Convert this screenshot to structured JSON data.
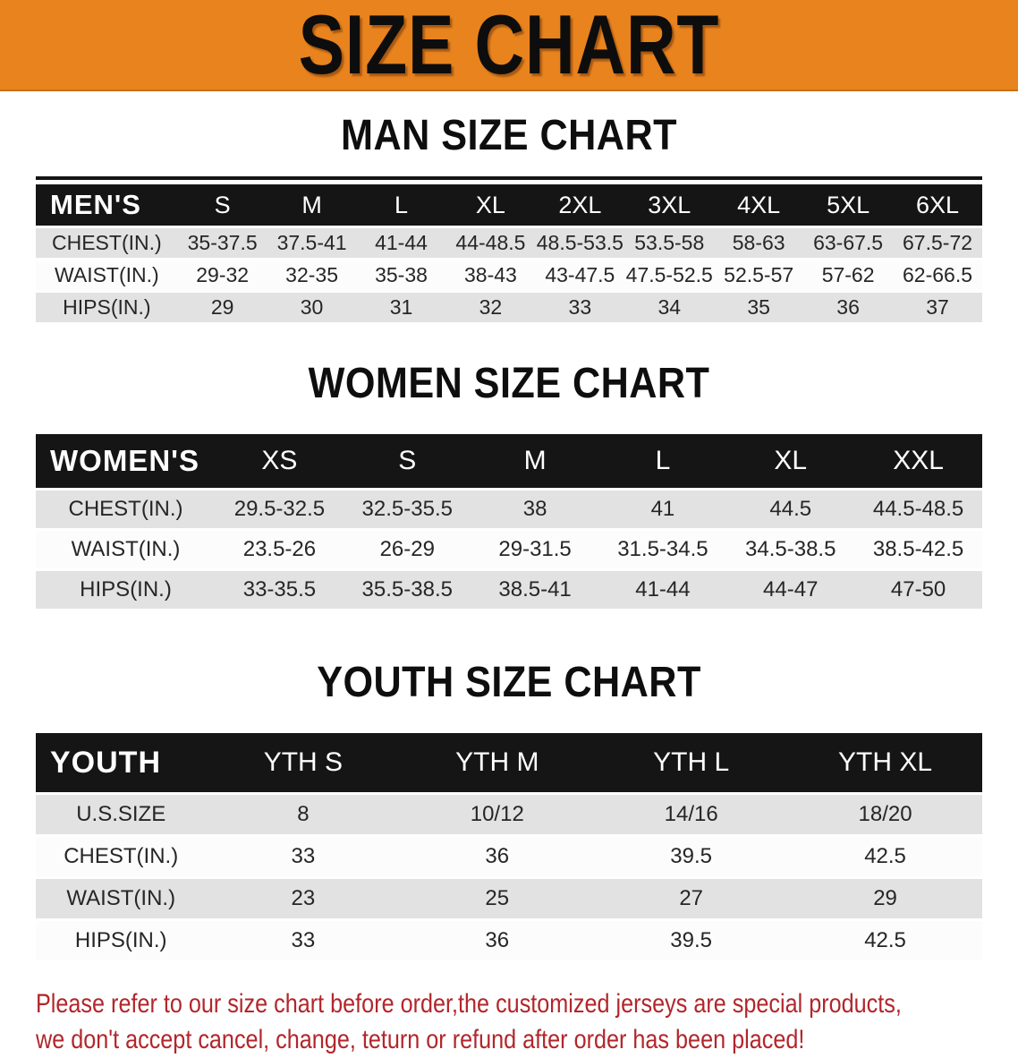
{
  "banner": {
    "title": "SIZE CHART",
    "bg_color": "#E8831E",
    "text_color": "#0d0d0d"
  },
  "sections": [
    {
      "heading": "MAN SIZE CHART",
      "table": {
        "header_label": "MEN'S",
        "columns": [
          "S",
          "M",
          "L",
          "XL",
          "2XL",
          "3XL",
          "4XL",
          "5XL",
          "6XL"
        ],
        "rows": [
          {
            "label": "CHEST(IN.)",
            "values": [
              "35-37.5",
              "37.5-41",
              "41-44",
              "44-48.5",
              "48.5-53.5",
              "53.5-58",
              "58-63",
              "63-67.5",
              "67.5-72"
            ]
          },
          {
            "label": "WAIST(IN.)",
            "values": [
              "29-32",
              "32-35",
              "35-38",
              "38-43",
              "43-47.5",
              "47.5-52.5",
              "52.5-57",
              "57-62",
              "62-66.5"
            ]
          },
          {
            "label": "HIPS(IN.)",
            "values": [
              "29",
              "30",
              "31",
              "32",
              "33",
              "34",
              "35",
              "36",
              "37"
            ]
          }
        ]
      }
    },
    {
      "heading": "WOMEN SIZE CHART",
      "table": {
        "header_label": "WOMEN'S",
        "columns": [
          "XS",
          "S",
          "M",
          "L",
          "XL",
          "XXL"
        ],
        "rows": [
          {
            "label": "CHEST(IN.)",
            "values": [
              "29.5-32.5",
              "32.5-35.5",
              "38",
              "41",
              "44.5",
              "44.5-48.5"
            ]
          },
          {
            "label": "WAIST(IN.)",
            "values": [
              "23.5-26",
              "26-29",
              "29-31.5",
              "31.5-34.5",
              "34.5-38.5",
              "38.5-42.5"
            ]
          },
          {
            "label": "HIPS(IN.)",
            "values": [
              "33-35.5",
              "35.5-38.5",
              "38.5-41",
              "41-44",
              "44-47",
              "47-50"
            ]
          }
        ]
      }
    },
    {
      "heading": "YOUTH SIZE CHART",
      "table": {
        "header_label": "YOUTH",
        "columns": [
          "YTH S",
          "YTH M",
          "YTH L",
          "YTH XL"
        ],
        "rows": [
          {
            "label": "U.S.SIZE",
            "values": [
              "8",
              "10/12",
              "14/16",
              "18/20"
            ]
          },
          {
            "label": "CHEST(IN.)",
            "values": [
              "33",
              "36",
              "39.5",
              "42.5"
            ]
          },
          {
            "label": "WAIST(IN.)",
            "values": [
              "23",
              "25",
              "27",
              "29"
            ]
          },
          {
            "label": "HIPS(IN.)",
            "values": [
              "33",
              "36",
              "39.5",
              "42.5"
            ]
          }
        ]
      }
    }
  ],
  "disclaimer": {
    "line1": "Please refer to our size chart before order,the customized jerseys are special products,",
    "line2": "we don't accept cancel, change, teturn or refund after order has been placed!",
    "color": "#B2262B"
  }
}
